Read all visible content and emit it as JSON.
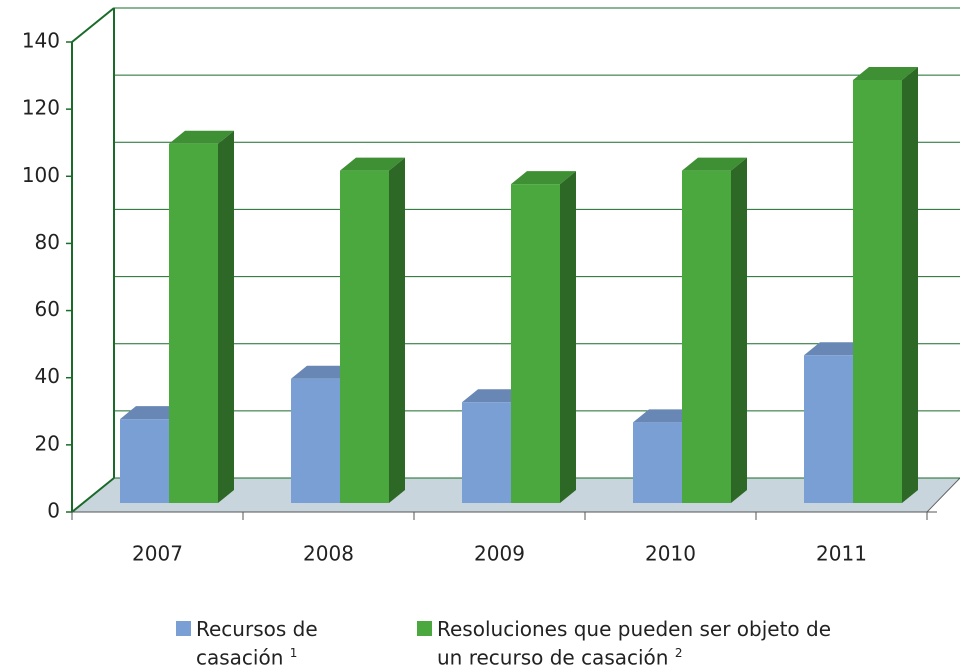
{
  "chart_data": {
    "type": "bar3d",
    "categories": [
      "2007",
      "2008",
      "2009",
      "2010",
      "2011"
    ],
    "series": [
      {
        "name": "Recursos de casación",
        "footnote": "1",
        "color": "#7a9fd4",
        "values": [
          25,
          37,
          30,
          24,
          44
        ]
      },
      {
        "name": "Resoluciones que pueden ser objeto de un recurso de casación",
        "footnote": "2",
        "color": "#4aa83e",
        "values": [
          107,
          99,
          95,
          99,
          126
        ]
      }
    ],
    "ylim": [
      0,
      140
    ],
    "yticks": [
      0,
      20,
      40,
      60,
      80,
      100,
      120,
      140
    ],
    "grid": true
  }
}
